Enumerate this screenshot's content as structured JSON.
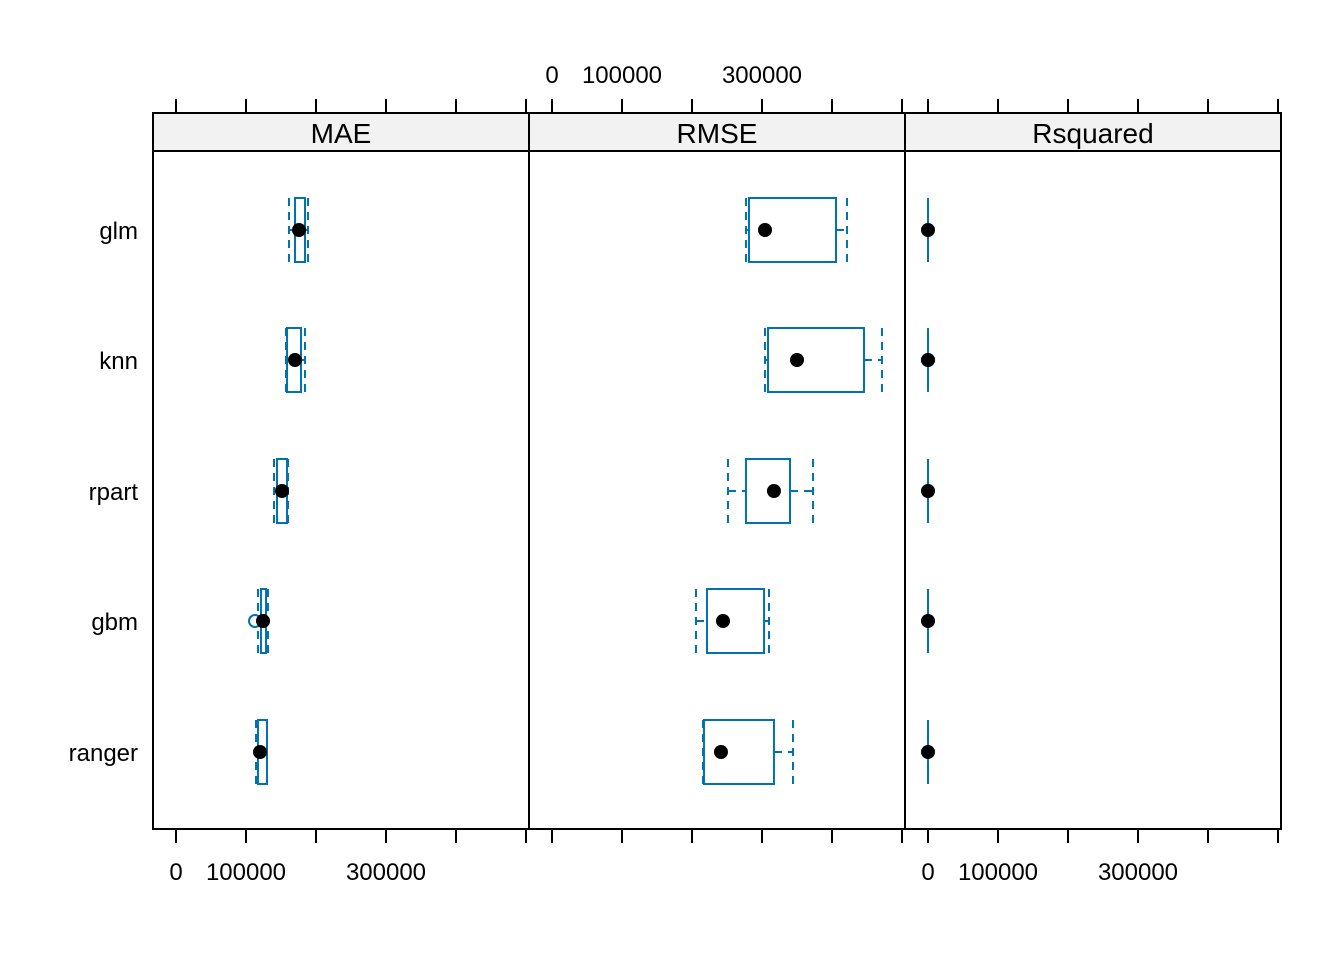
{
  "chart_data": {
    "type": "boxplot",
    "title": "",
    "xlabel": "",
    "ylabel": "",
    "models": [
      "glm",
      "knn",
      "rpart",
      "gbm",
      "ranger"
    ],
    "xlim": [
      -32857,
      504286
    ],
    "ticks": [
      0,
      100000,
      200000,
      300000,
      400000,
      500000
    ],
    "tick_labels": [
      "0",
      "100000",
      "300000"
    ],
    "labeled_ticks": [
      0,
      100000,
      300000
    ],
    "colors": {
      "box": "#0072B2",
      "median": "#000000",
      "strip": "#F2F2F2"
    },
    "panels": [
      {
        "name": "MAE",
        "stats": {
          "glm": {
            "min": 161400,
            "q1": 170000,
            "median": 175700,
            "q3": 184300,
            "max": 188600,
            "outliers": []
          },
          "knn": {
            "min": 157100,
            "q1": 158600,
            "median": 170000,
            "q3": 178600,
            "max": 184300,
            "outliers": []
          },
          "rpart": {
            "min": 140000,
            "q1": 144300,
            "median": 151400,
            "q3": 158600,
            "max": 160000,
            "outliers": []
          },
          "gbm": {
            "min": 117100,
            "q1": 121400,
            "median": 124300,
            "q3": 128600,
            "max": 131400,
            "outliers": [
              112900
            ]
          },
          "ranger": {
            "min": 114300,
            "q1": 117100,
            "median": 120000,
            "q3": 130000,
            "max": 130000,
            "outliers": []
          }
        }
      },
      {
        "name": "RMSE",
        "stats": {
          "glm": {
            "min": 277100,
            "q1": 281400,
            "median": 304300,
            "q3": 405700,
            "max": 421400,
            "outliers": []
          },
          "knn": {
            "min": 304300,
            "q1": 308600,
            "median": 350000,
            "q3": 445700,
            "max": 471400,
            "outliers": []
          },
          "rpart": {
            "min": 251400,
            "q1": 277100,
            "median": 317100,
            "q3": 340000,
            "max": 372900,
            "outliers": []
          },
          "gbm": {
            "min": 205700,
            "q1": 221400,
            "median": 244300,
            "q3": 302900,
            "max": 310000,
            "outliers": []
          },
          "ranger": {
            "min": 215700,
            "q1": 217100,
            "median": 241400,
            "q3": 317100,
            "max": 344300,
            "outliers": []
          }
        }
      },
      {
        "name": "Rsquared",
        "stats": {
          "glm": {
            "min": 0.7,
            "q1": 0.75,
            "median": 0.8,
            "q3": 0.85,
            "max": 0.9,
            "outliers": []
          },
          "knn": {
            "min": 0.7,
            "q1": 0.75,
            "median": 0.8,
            "q3": 0.85,
            "max": 0.9,
            "outliers": [
              0.6
            ]
          },
          "rpart": {
            "min": 0.7,
            "q1": 0.75,
            "median": 0.8,
            "q3": 0.85,
            "max": 0.9,
            "outliers": []
          },
          "gbm": {
            "min": 0.7,
            "q1": 0.75,
            "median": 0.8,
            "q3": 0.85,
            "max": 0.9,
            "outliers": []
          },
          "ranger": {
            "min": 0.7,
            "q1": 0.75,
            "median": 0.8,
            "q3": 0.85,
            "max": 0.9,
            "outliers": []
          }
        }
      }
    ]
  }
}
